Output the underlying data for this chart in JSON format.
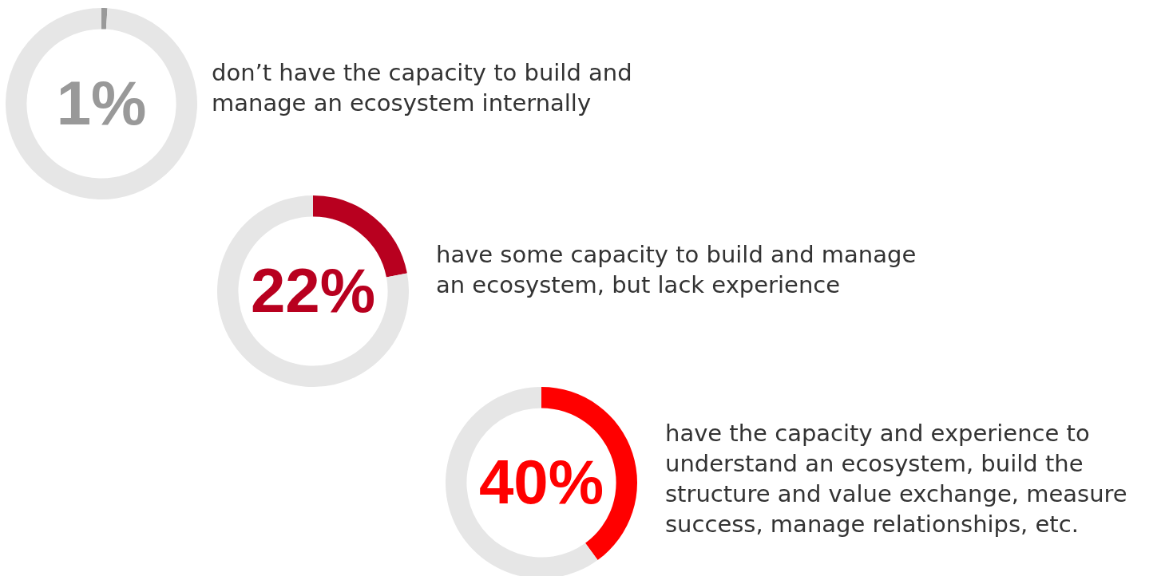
{
  "chart_data": [
    {
      "type": "donut",
      "categories": [
        null,
        null
      ],
      "values": [
        1,
        99
      ],
      "colors": [
        "#999999",
        "#e6e6e6"
      ],
      "value_labels": [
        "1%",
        null
      ],
      "annotations": [
        "don’t have the capacity to build and manage an ecosystem internally"
      ]
    },
    {
      "type": "donut",
      "categories": [
        null,
        null
      ],
      "values": [
        22,
        78
      ],
      "colors": [
        "#b8001f",
        "#e6e6e6"
      ],
      "value_labels": [
        "22%",
        null
      ],
      "annotations": [
        "have some capacity to build and manage an ecosystem, but lack experience"
      ]
    },
    {
      "type": "donut",
      "categories": [
        null,
        null
      ],
      "values": [
        40,
        60
      ],
      "colors": [
        "#ff0000",
        "#e6e6e6"
      ],
      "value_labels": [
        "40%",
        null
      ],
      "annotations": [
        "have the capacity and experience to understand an ecosystem, build the structure and value exchange, measure success, manage relationships, etc."
      ]
    }
  ]
}
